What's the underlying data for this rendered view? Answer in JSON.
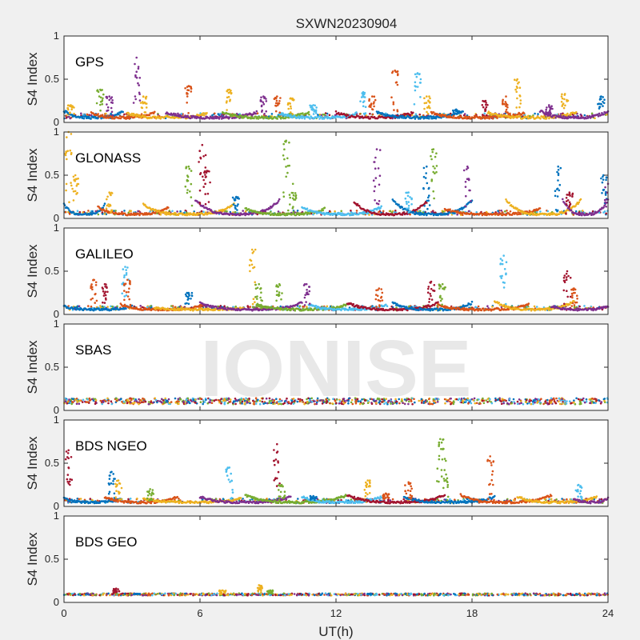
{
  "title": "SXWN20230904",
  "watermark": "IONISE",
  "colors": [
    "#0072BD",
    "#D95319",
    "#EDB120",
    "#7E2F8E",
    "#77AC30",
    "#4DBEEE",
    "#A2142F"
  ],
  "chart_data": {
    "type": "scatter",
    "title": "SXWN20230904",
    "xlabel": "UT(h)",
    "ylabel": "S4 Index",
    "xlim": [
      0,
      24
    ],
    "ylim": [
      0,
      1
    ],
    "xticks": [
      0,
      6,
      12,
      18,
      24
    ],
    "yticks": [
      0,
      0.5,
      1
    ],
    "xtick_labels": [
      "0",
      "6",
      "12",
      "18",
      "24"
    ],
    "ytick_labels": [
      "0",
      "0.5",
      "1"
    ],
    "grid": false,
    "panels": [
      {
        "name": "GPS",
        "baseline": 0.07,
        "noise": 0.03,
        "arcs": [
          [
            0,
            2.6,
            0.12
          ],
          [
            1.2,
            4.0,
            0.1
          ],
          [
            2.8,
            6.3,
            0.09
          ],
          [
            4.5,
            8.5,
            0.1
          ],
          [
            7.0,
            10.8,
            0.1
          ],
          [
            9.5,
            12.9,
            0.09
          ],
          [
            12.0,
            15.4,
            0.1
          ],
          [
            13.8,
            17.6,
            0.11
          ],
          [
            16.2,
            20.3,
            0.1
          ],
          [
            18.7,
            22.6,
            0.1
          ],
          [
            21.0,
            24,
            0.12
          ]
        ],
        "spikes": [
          [
            0.3,
            0.2,
            2
          ],
          [
            1.6,
            0.38,
            4
          ],
          [
            2.0,
            0.3,
            3
          ],
          [
            3.2,
            0.75,
            3
          ],
          [
            3.5,
            0.3,
            2
          ],
          [
            5.5,
            0.42,
            1
          ],
          [
            7.3,
            0.38,
            2
          ],
          [
            8.8,
            0.3,
            3
          ],
          [
            9.4,
            0.3,
            1
          ],
          [
            10.0,
            0.28,
            2
          ],
          [
            11.0,
            0.2,
            5
          ],
          [
            13.2,
            0.35,
            5
          ],
          [
            13.6,
            0.3,
            1
          ],
          [
            14.6,
            0.6,
            1
          ],
          [
            15.6,
            0.57,
            5
          ],
          [
            16.0,
            0.3,
            2
          ],
          [
            17.3,
            0.15,
            0
          ],
          [
            18.6,
            0.25,
            6
          ],
          [
            19.5,
            0.3,
            1
          ],
          [
            20.0,
            0.5,
            2
          ],
          [
            21.4,
            0.2,
            3
          ],
          [
            22.1,
            0.33,
            2
          ],
          [
            23.7,
            0.3,
            0
          ]
        ]
      },
      {
        "name": "GLONASS",
        "baseline": 0.06,
        "noise": 0.025,
        "arcs": [
          [
            0,
            1.8,
            0.15
          ],
          [
            1.5,
            4.6,
            0.12
          ],
          [
            3.5,
            7.5,
            0.15
          ],
          [
            5.8,
            9.5,
            0.2
          ],
          [
            8.0,
            11.5,
            0.1
          ],
          [
            10.5,
            14.0,
            0.12
          ],
          [
            12.8,
            16.0,
            0.18
          ],
          [
            14.5,
            18.0,
            0.2
          ],
          [
            16.8,
            21.0,
            0.1
          ],
          [
            19.5,
            22.8,
            0.2
          ],
          [
            22.0,
            24,
            0.2
          ]
        ],
        "spikes": [
          [
            0.2,
            1.0,
            2
          ],
          [
            0.5,
            0.5,
            2
          ],
          [
            2.0,
            0.3,
            2
          ],
          [
            5.5,
            0.6,
            4
          ],
          [
            6.1,
            0.85,
            6
          ],
          [
            6.3,
            0.55,
            6
          ],
          [
            7.6,
            0.25,
            0
          ],
          [
            9.8,
            0.9,
            4
          ],
          [
            10.1,
            0.4,
            4
          ],
          [
            13.8,
            0.8,
            3
          ],
          [
            15.2,
            0.3,
            5
          ],
          [
            16.0,
            0.6,
            0
          ],
          [
            16.3,
            0.8,
            4
          ],
          [
            17.8,
            0.6,
            3
          ],
          [
            21.8,
            0.6,
            0
          ],
          [
            22.3,
            0.3,
            6
          ],
          [
            23.8,
            0.5,
            0
          ],
          [
            24.0,
            0.4,
            3
          ]
        ]
      },
      {
        "name": "GALILEO",
        "baseline": 0.07,
        "noise": 0.025,
        "arcs": [
          [
            0,
            3.0,
            0.08
          ],
          [
            2.5,
            6.2,
            0.1
          ],
          [
            4.0,
            8.0,
            0.06
          ],
          [
            6.0,
            10.5,
            0.12
          ],
          [
            8.5,
            12.5,
            0.1
          ],
          [
            10.8,
            14.2,
            0.1
          ],
          [
            12.5,
            16.5,
            0.12
          ],
          [
            14.5,
            18.0,
            0.12
          ],
          [
            16.5,
            20.5,
            0.1
          ],
          [
            19.0,
            22.5,
            0.14
          ],
          [
            21.5,
            24,
            0.08
          ]
        ],
        "spikes": [
          [
            1.3,
            0.4,
            1
          ],
          [
            1.8,
            0.35,
            6
          ],
          [
            2.7,
            0.55,
            5
          ],
          [
            2.8,
            0.4,
            1
          ],
          [
            5.5,
            0.25,
            0
          ],
          [
            8.3,
            0.75,
            2
          ],
          [
            8.6,
            0.35,
            4
          ],
          [
            9.5,
            0.35,
            4
          ],
          [
            10.7,
            0.35,
            3
          ],
          [
            13.9,
            0.3,
            1
          ],
          [
            16.2,
            0.38,
            6
          ],
          [
            16.7,
            0.35,
            4
          ],
          [
            19.4,
            0.68,
            5
          ],
          [
            22.2,
            0.5,
            6
          ],
          [
            22.5,
            0.3,
            1
          ]
        ]
      },
      {
        "name": "SBAS",
        "baseline": 0.1,
        "noise": 0.035,
        "arcs": [],
        "spikes": []
      },
      {
        "name": "BDS NGEO",
        "baseline": 0.06,
        "noise": 0.025,
        "arcs": [
          [
            0,
            2.5,
            0.08
          ],
          [
            1.8,
            5.0,
            0.1
          ],
          [
            3.5,
            7.8,
            0.08
          ],
          [
            6.0,
            10.0,
            0.1
          ],
          [
            8.0,
            12.5,
            0.12
          ],
          [
            10.5,
            14.0,
            0.1
          ],
          [
            12.5,
            16.8,
            0.12
          ],
          [
            15.0,
            19.0,
            0.1
          ],
          [
            17.5,
            21.5,
            0.12
          ],
          [
            20.0,
            23.5,
            0.1
          ],
          [
            22.5,
            24,
            0.08
          ]
        ],
        "spikes": [
          [
            0.2,
            0.65,
            6
          ],
          [
            2.1,
            0.4,
            0
          ],
          [
            2.4,
            0.3,
            2
          ],
          [
            3.8,
            0.2,
            4
          ],
          [
            7.3,
            0.45,
            5
          ],
          [
            9.4,
            0.72,
            6
          ],
          [
            9.6,
            0.25,
            4
          ],
          [
            11.0,
            0.12,
            0
          ],
          [
            13.4,
            0.3,
            2
          ],
          [
            14.2,
            0.15,
            1
          ],
          [
            15.2,
            0.28,
            1
          ],
          [
            16.6,
            0.78,
            4
          ],
          [
            16.8,
            0.55,
            4
          ],
          [
            18.8,
            0.58,
            1
          ],
          [
            22.7,
            0.25,
            5
          ]
        ]
      },
      {
        "name": "BDS GEO",
        "baseline": 0.09,
        "noise": 0.012,
        "arcs": [],
        "spikes": [
          [
            2.3,
            0.16,
            6
          ],
          [
            3.2,
            0.1,
            0
          ],
          [
            7.0,
            0.14,
            2
          ],
          [
            8.6,
            0.2,
            2
          ],
          [
            9.1,
            0.14,
            4
          ],
          [
            13.5,
            0.1,
            0
          ]
        ]
      }
    ]
  }
}
